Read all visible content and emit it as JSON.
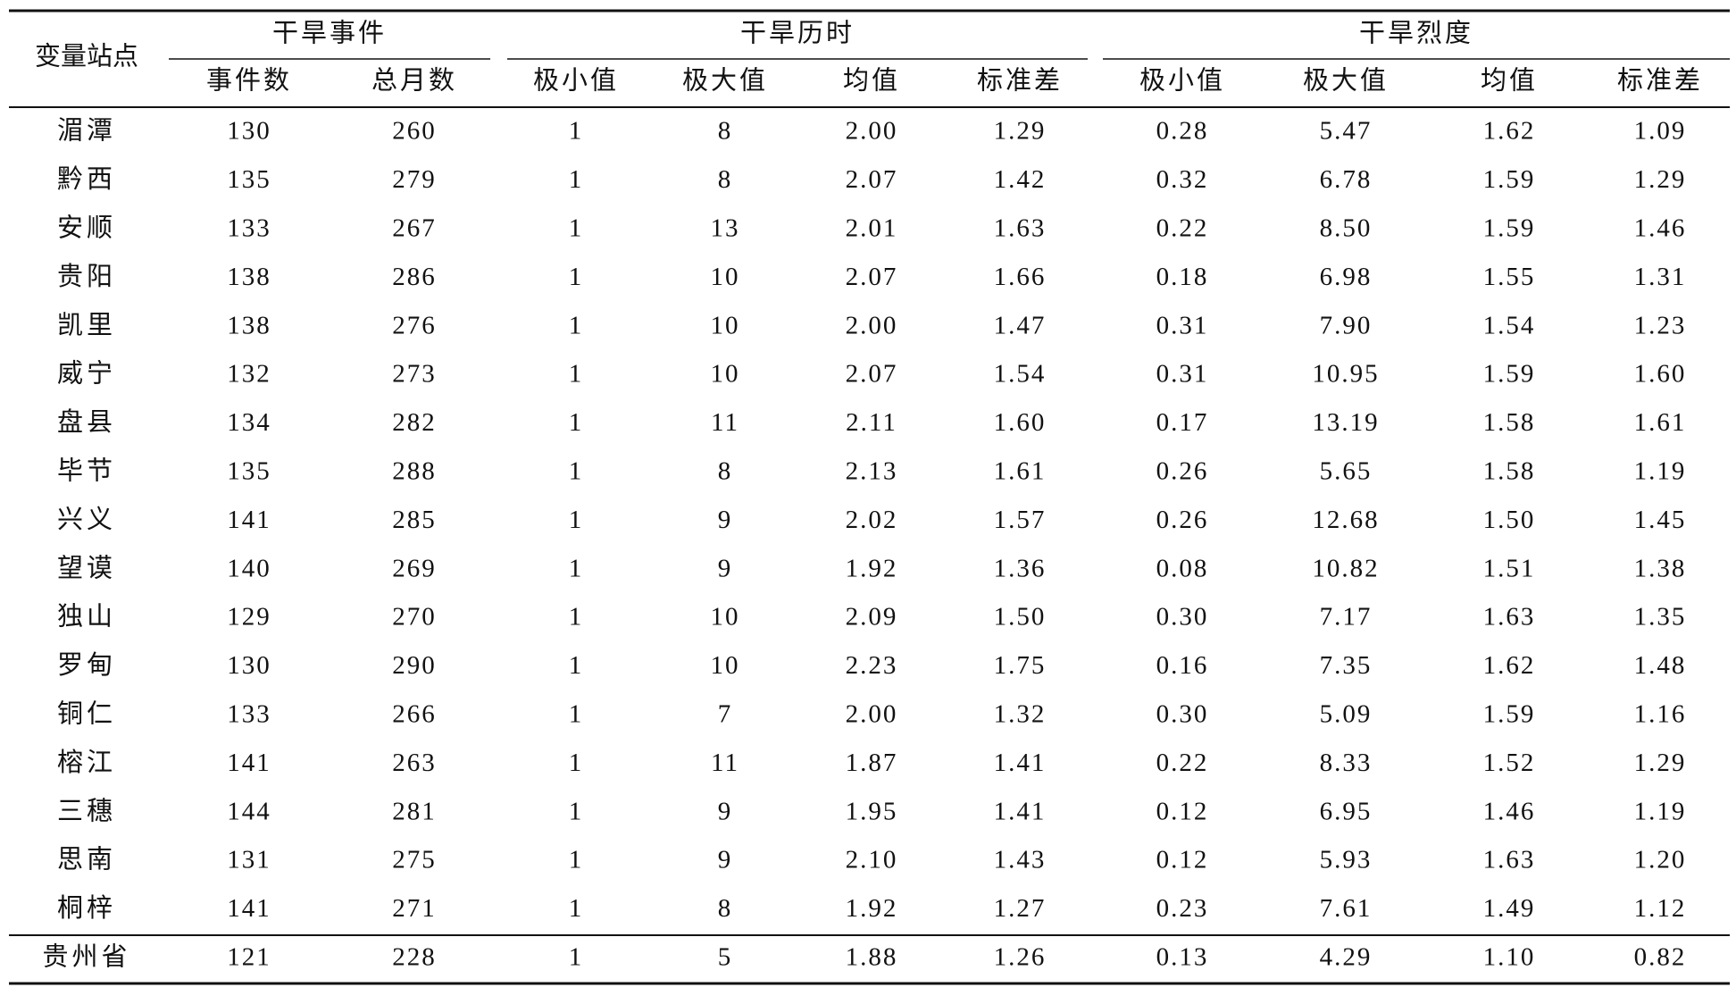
{
  "header": {
    "stub": "变量站点",
    "groups": [
      {
        "label": "干旱事件",
        "columns": [
          "事件数",
          "总月数"
        ]
      },
      {
        "label": "干旱历时",
        "columns": [
          "极小值",
          "极大值",
          "均值",
          "标准差"
        ]
      },
      {
        "label": "干旱烈度",
        "columns": [
          "极小值",
          "极大值",
          "均值",
          "标准差"
        ]
      }
    ]
  },
  "rows": [
    {
      "station": "湄潭",
      "values": [
        "130",
        "260",
        "1",
        "8",
        "2.00",
        "1.29",
        "0.28",
        "5.47",
        "1.62",
        "1.09"
      ]
    },
    {
      "station": "黔西",
      "values": [
        "135",
        "279",
        "1",
        "8",
        "2.07",
        "1.42",
        "0.32",
        "6.78",
        "1.59",
        "1.29"
      ]
    },
    {
      "station": "安顺",
      "values": [
        "133",
        "267",
        "1",
        "13",
        "2.01",
        "1.63",
        "0.22",
        "8.50",
        "1.59",
        "1.46"
      ]
    },
    {
      "station": "贵阳",
      "values": [
        "138",
        "286",
        "1",
        "10",
        "2.07",
        "1.66",
        "0.18",
        "6.98",
        "1.55",
        "1.31"
      ]
    },
    {
      "station": "凯里",
      "values": [
        "138",
        "276",
        "1",
        "10",
        "2.00",
        "1.47",
        "0.31",
        "7.90",
        "1.54",
        "1.23"
      ]
    },
    {
      "station": "威宁",
      "values": [
        "132",
        "273",
        "1",
        "10",
        "2.07",
        "1.54",
        "0.31",
        "10.95",
        "1.59",
        "1.60"
      ]
    },
    {
      "station": "盘县",
      "values": [
        "134",
        "282",
        "1",
        "11",
        "2.11",
        "1.60",
        "0.17",
        "13.19",
        "1.58",
        "1.61"
      ]
    },
    {
      "station": "毕节",
      "values": [
        "135",
        "288",
        "1",
        "8",
        "2.13",
        "1.61",
        "0.26",
        "5.65",
        "1.58",
        "1.19"
      ]
    },
    {
      "station": "兴义",
      "values": [
        "141",
        "285",
        "1",
        "9",
        "2.02",
        "1.57",
        "0.26",
        "12.68",
        "1.50",
        "1.45"
      ]
    },
    {
      "station": "望谟",
      "values": [
        "140",
        "269",
        "1",
        "9",
        "1.92",
        "1.36",
        "0.08",
        "10.82",
        "1.51",
        "1.38"
      ]
    },
    {
      "station": "独山",
      "values": [
        "129",
        "270",
        "1",
        "10",
        "2.09",
        "1.50",
        "0.30",
        "7.17",
        "1.63",
        "1.35"
      ]
    },
    {
      "station": "罗甸",
      "values": [
        "130",
        "290",
        "1",
        "10",
        "2.23",
        "1.75",
        "0.16",
        "7.35",
        "1.62",
        "1.48"
      ]
    },
    {
      "station": "铜仁",
      "values": [
        "133",
        "266",
        "1",
        "7",
        "2.00",
        "1.32",
        "0.30",
        "5.09",
        "1.59",
        "1.16"
      ]
    },
    {
      "station": "榕江",
      "values": [
        "141",
        "263",
        "1",
        "11",
        "1.87",
        "1.41",
        "0.22",
        "8.33",
        "1.52",
        "1.29"
      ]
    },
    {
      "station": "三穗",
      "values": [
        "144",
        "281",
        "1",
        "9",
        "1.95",
        "1.41",
        "0.12",
        "6.95",
        "1.46",
        "1.19"
      ]
    },
    {
      "station": "思南",
      "values": [
        "131",
        "275",
        "1",
        "9",
        "2.10",
        "1.43",
        "0.12",
        "5.93",
        "1.63",
        "1.20"
      ]
    },
    {
      "station": "桐梓",
      "values": [
        "141",
        "271",
        "1",
        "8",
        "1.92",
        "1.27",
        "0.23",
        "7.61",
        "1.49",
        "1.12"
      ]
    }
  ],
  "total": {
    "station": "贵州省",
    "values": [
      "121",
      "228",
      "1",
      "5",
      "1.88",
      "1.26",
      "0.13",
      "4.29",
      "1.10",
      "0.82"
    ]
  }
}
